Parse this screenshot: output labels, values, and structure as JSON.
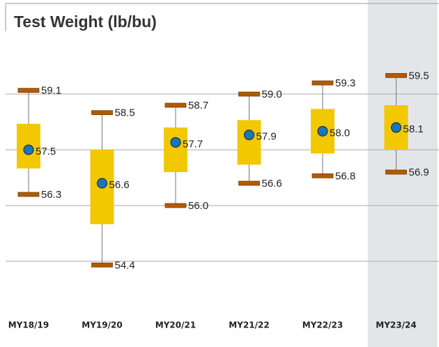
{
  "chart_data": {
    "type": "box",
    "title": "Test Weight (lb/bu)",
    "categories": [
      "MY18/19",
      "MY19/20",
      "MY20/21",
      "MY21/22",
      "MY22/23",
      "MY23/24"
    ],
    "max": {
      "values": [
        59.1,
        58.5,
        58.7,
        59.0,
        59.3,
        59.5
      ],
      "value_labels": [
        "59.1",
        "58.5",
        "58.7",
        "59.0",
        "59.3",
        "59.5"
      ]
    },
    "q3": {
      "values": [
        58.2,
        57.5,
        58.1,
        58.3,
        58.6,
        58.7
      ]
    },
    "mean": {
      "values": [
        57.5,
        56.6,
        57.7,
        57.9,
        58.0,
        58.1
      ],
      "value_labels": [
        "57.5",
        "56.6",
        "57.7",
        "57.9",
        "58.0",
        "58.1"
      ]
    },
    "q1": {
      "values": [
        57.0,
        55.5,
        56.9,
        57.1,
        57.4,
        57.5
      ]
    },
    "min": {
      "values": [
        56.3,
        54.4,
        56.0,
        56.6,
        56.8,
        56.9
      ],
      "value_labels": [
        "56.3",
        "54.4",
        "56.0",
        "56.6",
        "56.8",
        "56.9"
      ]
    },
    "ylim": [
      53.5,
      60.6
    ],
    "yticks": [
      54.5,
      56.0,
      57.5,
      59.0
    ],
    "grid": true,
    "box_color": "#f2c800",
    "cap_color": "#b35a00",
    "mean_color": "#1a75bb",
    "highlight_index": 5,
    "highlight_color": "#e4e5e8"
  }
}
